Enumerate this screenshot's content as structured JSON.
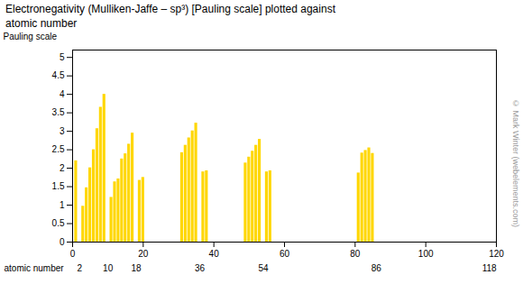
{
  "chart_data": {
    "type": "bar",
    "title": "Electronegativity (Mulliken-Jaffe – sp³) [Pauling scale] plotted against\natomic number",
    "xlabel": "atomic number",
    "ylabel": "Pauling scale",
    "x": [
      1,
      3,
      4,
      5,
      6,
      7,
      8,
      9,
      11,
      12,
      13,
      14,
      15,
      16,
      17,
      19,
      20,
      31,
      32,
      33,
      34,
      35,
      37,
      38,
      49,
      50,
      51,
      52,
      53,
      55,
      56,
      81,
      82,
      83,
      84,
      85
    ],
    "values": [
      2.2,
      0.97,
      1.47,
      2.01,
      2.5,
      3.07,
      3.65,
      4.0,
      1.21,
      1.63,
      1.71,
      2.25,
      2.39,
      2.65,
      2.95,
      1.67,
      1.75,
      2.42,
      2.62,
      2.82,
      3.01,
      3.22,
      1.9,
      1.93,
      2.14,
      2.3,
      2.46,
      2.62,
      2.78,
      1.9,
      1.93,
      1.87,
      2.41,
      2.48,
      2.55,
      2.4
    ],
    "color": "#FFD700",
    "xlim": [
      0,
      120
    ],
    "xticks": [
      0,
      20,
      40,
      60,
      80,
      100,
      120
    ],
    "ylim": [
      0,
      5.2
    ],
    "yticks": [
      0,
      0.5,
      1,
      1.5,
      2,
      2.5,
      3,
      3.5,
      4,
      4.5,
      5
    ],
    "grid": false,
    "annotations": [
      {
        "x": 2,
        "text": "2"
      },
      {
        "x": 10,
        "text": "10"
      },
      {
        "x": 18,
        "text": "18"
      },
      {
        "x": 36,
        "text": "36"
      },
      {
        "x": 54,
        "text": "54"
      },
      {
        "x": 86,
        "text": "86"
      },
      {
        "x": 118,
        "text": "118"
      },
      {
        "text": "© Mark Winter (webelements.com)"
      }
    ]
  }
}
